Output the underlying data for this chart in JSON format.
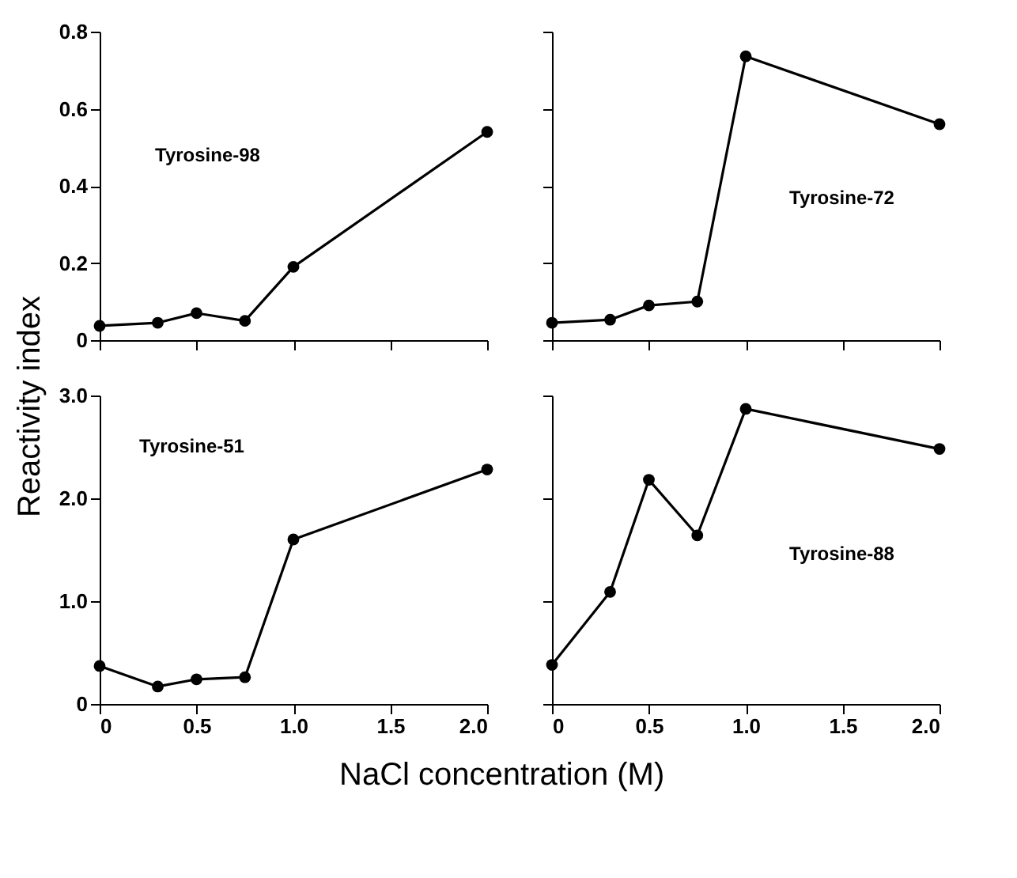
{
  "chart_data": [
    {
      "type": "line",
      "ylabel": "Reactivity index",
      "x": [
        0,
        0.3,
        0.5,
        0.75,
        1.0,
        2.0
      ],
      "series": [
        {
          "name": "Tyrosine-98",
          "color": "#000000",
          "values": [
            0.037,
            0.045,
            0.07,
            0.05,
            0.19,
            0.54
          ]
        }
      ],
      "xlim": [
        0,
        2.0
      ],
      "xticks": [
        {
          "value": 0,
          "label": null
        },
        {
          "value": 0.5,
          "label": null
        },
        {
          "value": 1,
          "label": null
        },
        {
          "value": 1.5,
          "label": null
        },
        {
          "value": 2,
          "label": null
        }
      ],
      "ylim": [
        0,
        0.8
      ],
      "yticks": [
        0,
        0.2,
        0.4,
        0.6,
        0.8
      ],
      "marker": "circle",
      "grid": false,
      "tick_labels": "y"
    },
    {
      "type": "line",
      "x": [
        0,
        0.3,
        0.5,
        0.75,
        1.0,
        2.0
      ],
      "series": [
        {
          "name": "Tyrosine-72",
          "color": "#000000",
          "values": [
            0.045,
            0.053,
            0.09,
            0.1,
            0.736,
            0.56
          ]
        }
      ],
      "xlim": [
        0,
        2.0
      ],
      "xticks": [
        {
          "value": 0,
          "label": null
        },
        {
          "value": 0.5,
          "label": null
        },
        {
          "value": 1,
          "label": null
        },
        {
          "value": 1.5,
          "label": null
        },
        {
          "value": 2,
          "label": null
        }
      ],
      "ylim": [
        0,
        0.8
      ],
      "yticks": [
        {
          "value": 0,
          "label": null
        },
        {
          "value": 0.2,
          "label": null
        },
        {
          "value": 0.4,
          "label": null
        },
        {
          "value": 0.6,
          "label": null
        },
        {
          "value": 0.8,
          "label": null
        }
      ],
      "marker": "circle",
      "grid": false,
      "tick_labels": false
    },
    {
      "type": "line",
      "xlabel": "NaCl  concentration    (M)",
      "x": [
        0,
        0.3,
        0.5,
        0.75,
        1.0,
        2.0
      ],
      "series": [
        {
          "name": "Tyrosine-51",
          "color": "#000000",
          "values": [
            0.37,
            0.17,
            0.24,
            0.26,
            1.6,
            2.28
          ]
        }
      ],
      "xlim": [
        0,
        2.0
      ],
      "xticks": [
        0,
        0.5,
        {
          "value": 1,
          "label": "1.0"
        },
        1.5,
        {
          "value": 2,
          "label": "2.0"
        }
      ],
      "ylim": [
        0,
        3.0
      ],
      "yticks": [
        0,
        {
          "value": 1,
          "label": "1.0"
        },
        {
          "value": 2,
          "label": "2.0"
        },
        {
          "value": 3,
          "label": "3.0"
        }
      ],
      "marker": "circle",
      "grid": false
    },
    {
      "type": "line",
      "x": [
        0,
        0.3,
        0.5,
        0.75,
        1.0,
        2.0
      ],
      "series": [
        {
          "name": "Tyrosine-88",
          "color": "#000000",
          "values": [
            0.38,
            1.09,
            2.18,
            1.64,
            2.87,
            2.48
          ]
        }
      ],
      "xlim": [
        0,
        2.0
      ],
      "xticks": [
        0,
        0.5,
        {
          "value": 1,
          "label": "1.0"
        },
        1.5,
        {
          "value": 2,
          "label": "2.0"
        }
      ],
      "ylim": [
        0,
        3.0
      ],
      "yticks": [
        {
          "value": 0,
          "label": null
        },
        {
          "value": 1,
          "label": null
        },
        {
          "value": 2,
          "label": null
        },
        {
          "value": 3,
          "label": null
        }
      ],
      "marker": "circle",
      "grid": false,
      "tick_labels": "x"
    }
  ]
}
